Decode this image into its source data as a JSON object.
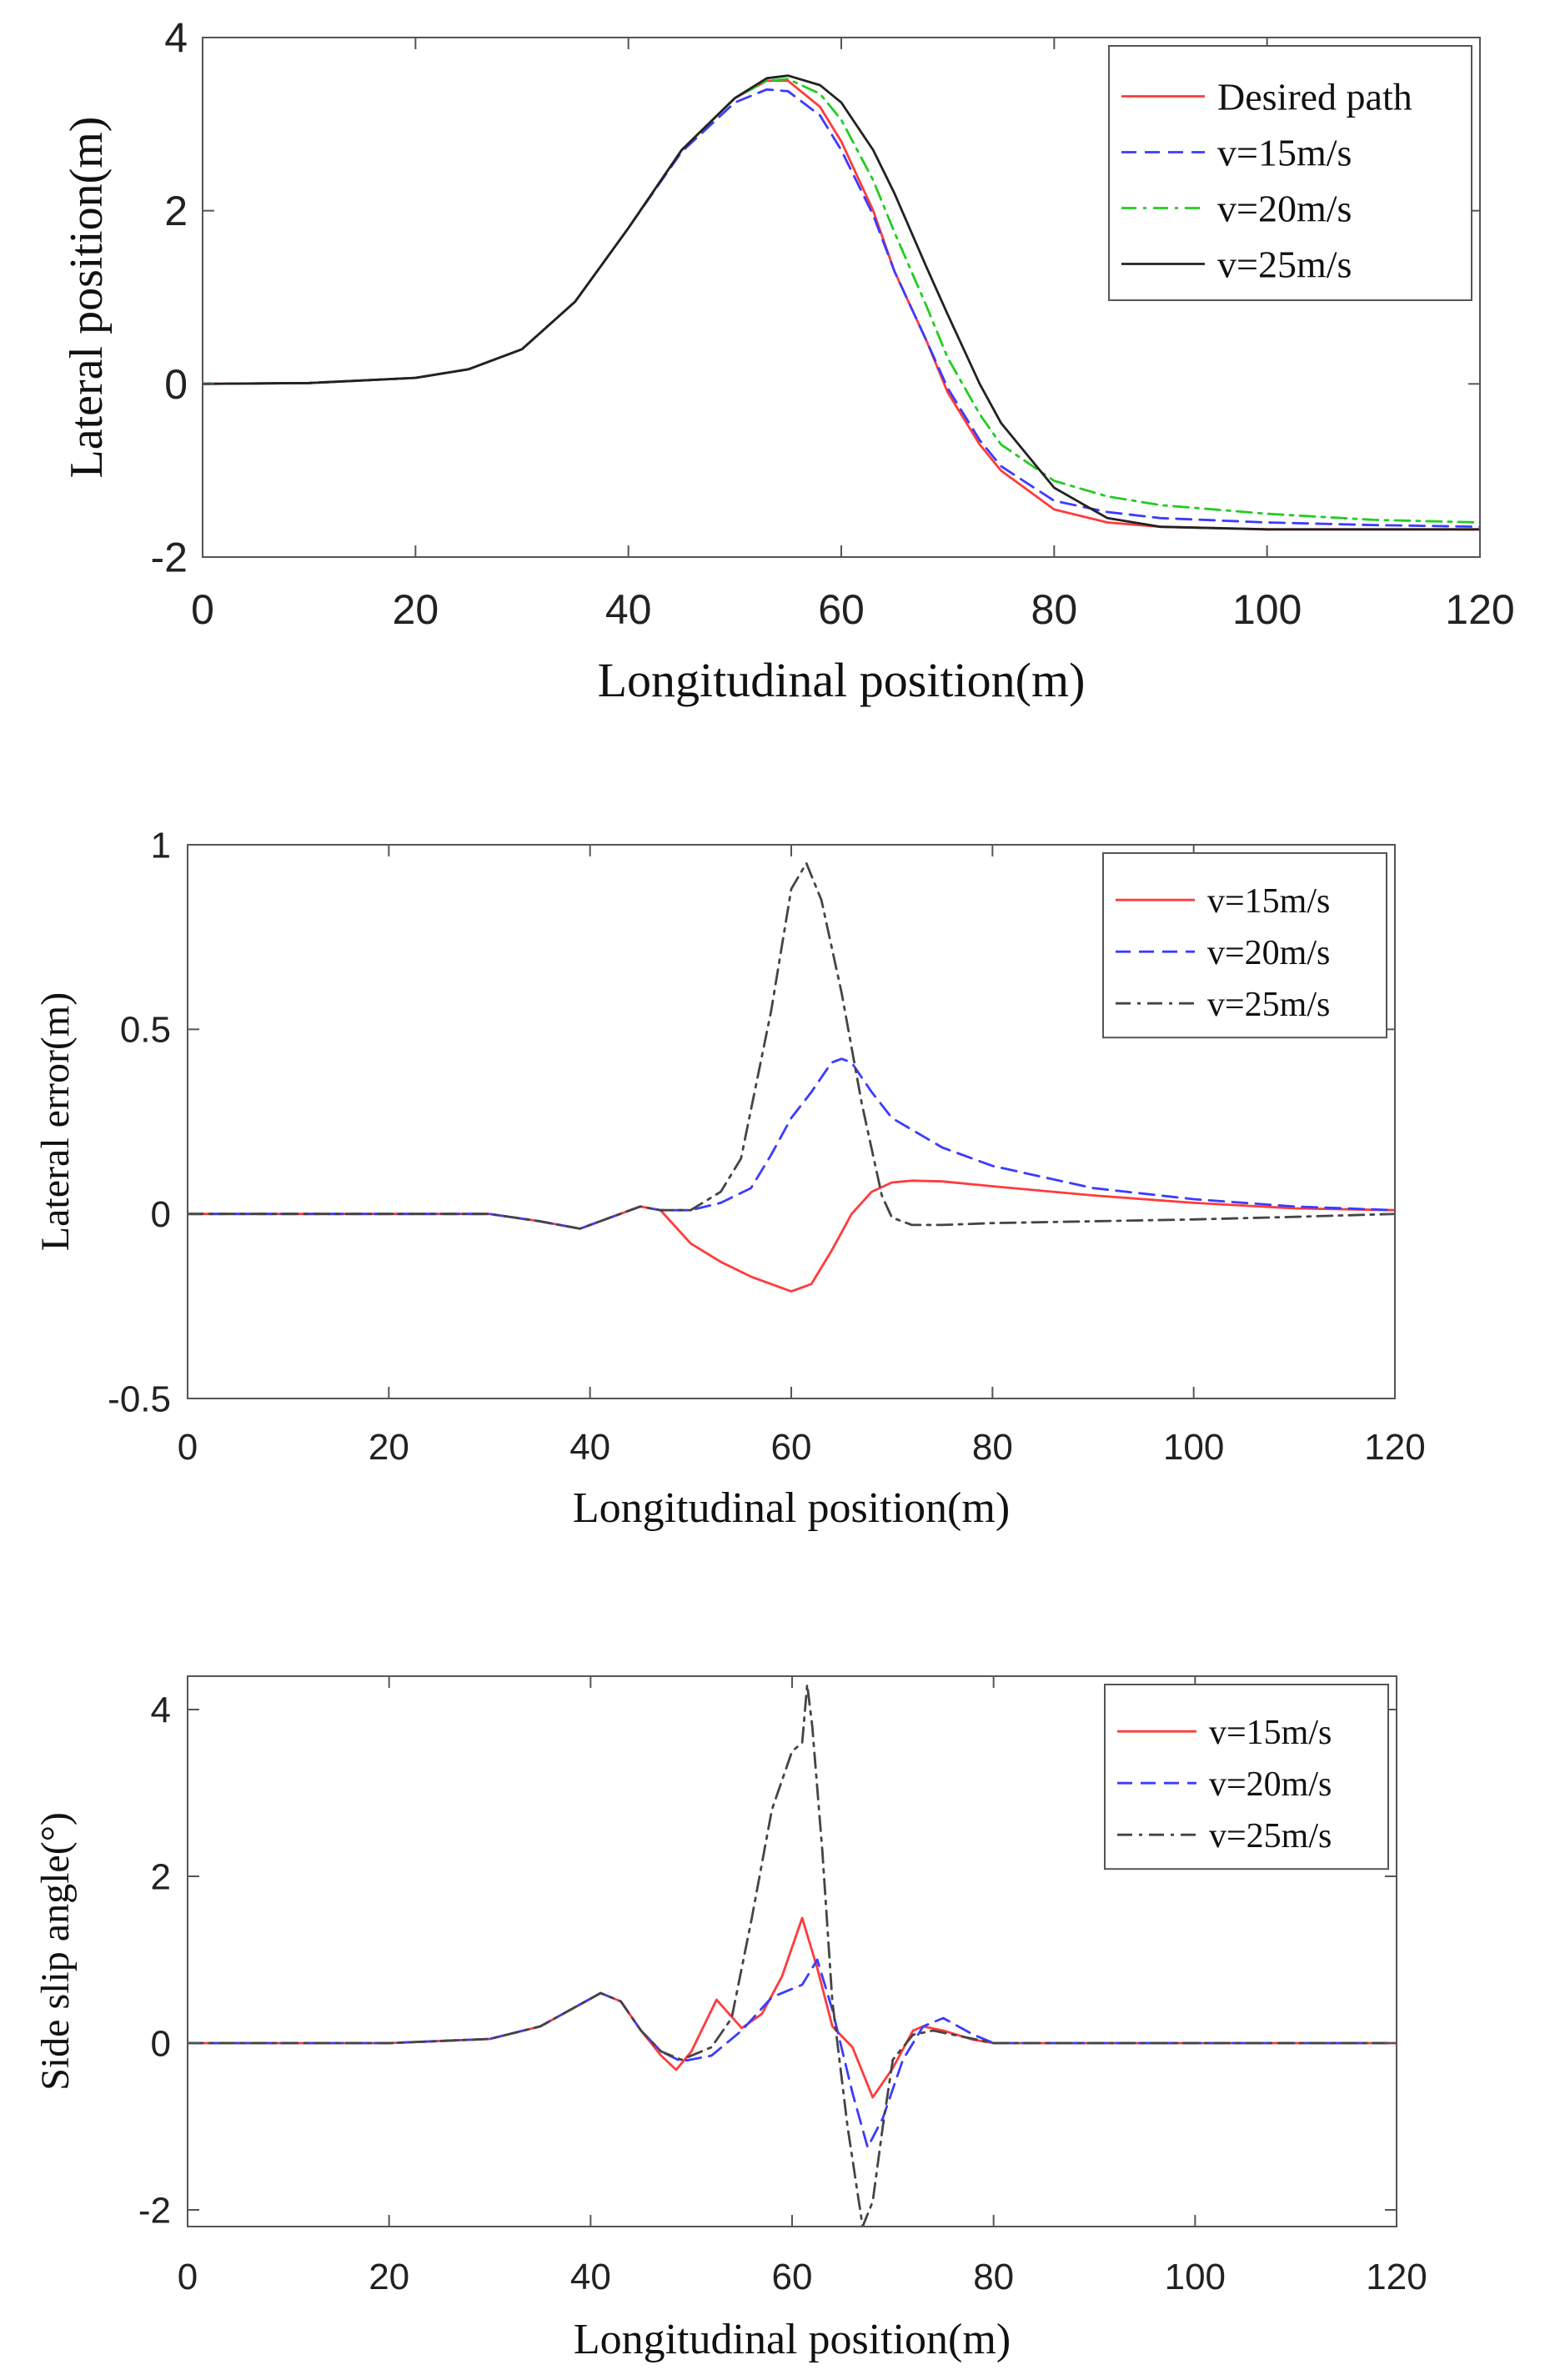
{
  "chart_data": [
    {
      "type": "line",
      "title": "",
      "xlabel": "Longitudinal position(m)",
      "ylabel": "Lateral position(m)",
      "xlim": [
        0,
        120
      ],
      "ylim": [
        -2,
        4
      ],
      "xticks": [
        0,
        20,
        40,
        60,
        80,
        100,
        120
      ],
      "yticks": [
        -2,
        0,
        2,
        4
      ],
      "xtick_labels": [
        "0",
        "20",
        "40",
        "60",
        "80",
        "100",
        "120"
      ],
      "ytick_labels": [
        "-2",
        "0",
        "2",
        "4"
      ],
      "legend_position": "top-right",
      "series": [
        {
          "name": "Desired path",
          "color": "#ff3b3b",
          "dash": "solid",
          "x": [
            0,
            10,
            20,
            25,
            30,
            35,
            40,
            45,
            50,
            53,
            55,
            58,
            60,
            63,
            65,
            68,
            70,
            73,
            75,
            80,
            85,
            90,
            100,
            110,
            120
          ],
          "y": [
            0,
            0.01,
            0.07,
            0.17,
            0.4,
            0.95,
            1.8,
            2.7,
            3.3,
            3.5,
            3.5,
            3.2,
            2.8,
            2.0,
            1.3,
            0.5,
            -0.1,
            -0.7,
            -1.0,
            -1.45,
            -1.6,
            -1.65,
            -1.68,
            -1.68,
            -1.68
          ]
        },
        {
          "name": "v=15m/s",
          "color": "#3b3bff",
          "dash": "dashed",
          "x": [
            0,
            10,
            20,
            25,
            30,
            35,
            40,
            45,
            50,
            53,
            55,
            58,
            60,
            63,
            65,
            68,
            70,
            73,
            75,
            80,
            85,
            90,
            100,
            110,
            120
          ],
          "y": [
            0,
            0.01,
            0.07,
            0.17,
            0.4,
            0.95,
            1.8,
            2.68,
            3.25,
            3.4,
            3.38,
            3.1,
            2.7,
            1.95,
            1.3,
            0.5,
            -0.05,
            -0.65,
            -0.95,
            -1.35,
            -1.48,
            -1.55,
            -1.6,
            -1.63,
            -1.65
          ]
        },
        {
          "name": "v=20m/s",
          "color": "#22cc22",
          "dash": "dashdot",
          "x": [
            0,
            10,
            20,
            25,
            30,
            35,
            40,
            45,
            50,
            53,
            55,
            58,
            60,
            63,
            65,
            68,
            70,
            73,
            75,
            80,
            85,
            90,
            100,
            110,
            120
          ],
          "y": [
            0,
            0.01,
            0.07,
            0.17,
            0.4,
            0.95,
            1.8,
            2.7,
            3.3,
            3.5,
            3.52,
            3.35,
            3.05,
            2.35,
            1.75,
            0.9,
            0.3,
            -0.35,
            -0.7,
            -1.12,
            -1.3,
            -1.4,
            -1.5,
            -1.57,
            -1.6
          ]
        },
        {
          "name": "v=25m/s",
          "color": "#222222",
          "dash": "solid",
          "x": [
            0,
            10,
            20,
            25,
            30,
            35,
            40,
            45,
            50,
            53,
            55,
            58,
            60,
            63,
            65,
            68,
            70,
            73,
            75,
            80,
            85,
            90,
            100,
            110,
            120
          ],
          "y": [
            0,
            0.01,
            0.07,
            0.17,
            0.4,
            0.95,
            1.8,
            2.7,
            3.3,
            3.53,
            3.56,
            3.45,
            3.25,
            2.7,
            2.2,
            1.35,
            0.8,
            0.0,
            -0.45,
            -1.2,
            -1.55,
            -1.65,
            -1.68,
            -1.68,
            -1.68
          ]
        }
      ]
    },
    {
      "type": "line",
      "title": "",
      "xlabel": "Longitudinal position(m)",
      "ylabel": "Lateral error(m)",
      "xlim": [
        0,
        120
      ],
      "ylim": [
        -0.5,
        1
      ],
      "xticks": [
        0,
        20,
        40,
        60,
        80,
        100,
        120
      ],
      "yticks": [
        -0.5,
        0,
        0.5,
        1
      ],
      "xtick_labels": [
        "0",
        "20",
        "40",
        "60",
        "80",
        "100",
        "120"
      ],
      "ytick_labels": [
        "-0.5",
        "0",
        "0.5",
        "1"
      ],
      "legend_position": "top-right",
      "series": [
        {
          "name": "v=15m/s",
          "color": "#ff3b3b",
          "dash": "solid",
          "x": [
            0,
            30,
            35,
            39,
            42,
            45,
            47,
            50,
            53,
            56,
            60,
            62,
            64,
            66,
            68,
            70,
            72,
            75,
            80,
            90,
            100,
            110,
            120
          ],
          "y": [
            0,
            0,
            -0.02,
            -0.04,
            -0.01,
            0.02,
            0.01,
            -0.08,
            -0.13,
            -0.17,
            -0.21,
            -0.19,
            -0.1,
            0.0,
            0.06,
            0.085,
            0.09,
            0.088,
            0.075,
            0.05,
            0.03,
            0.015,
            0.01
          ]
        },
        {
          "name": "v=20m/s",
          "color": "#3b3bff",
          "dash": "dashed",
          "x": [
            0,
            30,
            35,
            39,
            42,
            45,
            47,
            50,
            53,
            56,
            58,
            60,
            62,
            64,
            65,
            66,
            68,
            70,
            75,
            80,
            90,
            100,
            110,
            120
          ],
          "y": [
            0,
            0,
            -0.02,
            -0.04,
            -0.01,
            0.02,
            0.01,
            0.01,
            0.03,
            0.07,
            0.16,
            0.26,
            0.33,
            0.41,
            0.42,
            0.41,
            0.33,
            0.26,
            0.18,
            0.13,
            0.07,
            0.04,
            0.02,
            0.01
          ]
        },
        {
          "name": "v=25m/s",
          "color": "#444444",
          "dash": "dashdot",
          "x": [
            0,
            30,
            35,
            39,
            42,
            45,
            47,
            50,
            53,
            55,
            58,
            60,
            61.5,
            63,
            65,
            67,
            69,
            70,
            71,
            72,
            75,
            80,
            90,
            100,
            110,
            120
          ],
          "y": [
            0,
            0,
            -0.02,
            -0.04,
            -0.01,
            0.02,
            0.01,
            0.01,
            0.06,
            0.15,
            0.55,
            0.88,
            0.95,
            0.85,
            0.6,
            0.3,
            0.05,
            -0.01,
            -0.02,
            -0.03,
            -0.03,
            -0.025,
            -0.02,
            -0.015,
            -0.008,
            0
          ]
        }
      ]
    },
    {
      "type": "line",
      "title": "",
      "xlabel": "Longitudinal position(m)",
      "ylabel": "Side slip angle(°)",
      "xlim": [
        0,
        120
      ],
      "ylim": [
        -2.2,
        4.4
      ],
      "xticks": [
        0,
        20,
        40,
        60,
        80,
        100,
        120
      ],
      "yticks": [
        -2,
        0,
        2,
        4
      ],
      "xtick_labels": [
        "0",
        "20",
        "40",
        "60",
        "80",
        "100",
        "120"
      ],
      "ytick_labels": [
        "-2",
        "0",
        "2",
        "4"
      ],
      "legend_position": "top-right",
      "series": [
        {
          "name": "v=15m/s",
          "color": "#ff3b3b",
          "dash": "solid",
          "x": [
            0,
            20,
            30,
            35,
            38,
            41,
            43,
            45,
            47,
            48.5,
            50,
            52.5,
            55,
            57,
            59,
            61,
            62.5,
            64,
            66,
            68,
            70,
            72,
            73,
            75,
            78,
            80,
            90,
            120
          ],
          "y": [
            0,
            0,
            0.05,
            0.2,
            0.4,
            0.6,
            0.5,
            0.15,
            -0.15,
            -0.32,
            -0.1,
            0.52,
            0.18,
            0.35,
            0.8,
            1.5,
            0.9,
            0.2,
            -0.05,
            -0.65,
            -0.3,
            0.15,
            0.2,
            0.15,
            0.04,
            0,
            0,
            0
          ]
        },
        {
          "name": "v=20m/s",
          "color": "#3b3bff",
          "dash": "dashed",
          "x": [
            0,
            20,
            30,
            35,
            38,
            41,
            43,
            45,
            47,
            49,
            52,
            55,
            58,
            61,
            62.5,
            64,
            66,
            67.5,
            69,
            71,
            73,
            75,
            78,
            80,
            90,
            120
          ],
          "y": [
            0,
            0,
            0.05,
            0.2,
            0.4,
            0.6,
            0.5,
            0.15,
            -0.1,
            -0.22,
            -0.15,
            0.15,
            0.55,
            0.7,
            1.0,
            0.4,
            -0.6,
            -1.25,
            -0.9,
            -0.2,
            0.2,
            0.3,
            0.1,
            0,
            0,
            0
          ]
        },
        {
          "name": "v=25m/s",
          "color": "#444444",
          "dash": "dashdot",
          "x": [
            0,
            20,
            30,
            35,
            38,
            41,
            43,
            45,
            47,
            49,
            52,
            54,
            56,
            58,
            60,
            61,
            61.5,
            62,
            63,
            64,
            65.5,
            67,
            68,
            69,
            70,
            72,
            74,
            76,
            80,
            90,
            120
          ],
          "y": [
            0,
            0,
            0.05,
            0.2,
            0.4,
            0.6,
            0.5,
            0.15,
            -0.1,
            -0.2,
            -0.05,
            0.3,
            1.5,
            2.8,
            3.5,
            3.6,
            4.3,
            3.8,
            2.3,
            0.5,
            -1.0,
            -2.2,
            -1.9,
            -1.0,
            -0.2,
            0.1,
            0.15,
            0.1,
            0,
            0,
            0
          ]
        }
      ]
    }
  ]
}
